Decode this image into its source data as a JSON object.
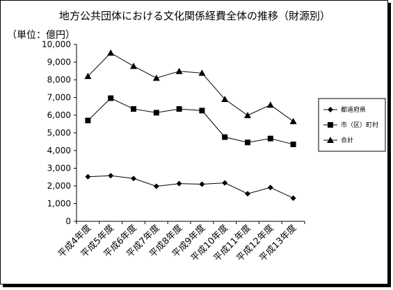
{
  "chart_data": {
    "type": "line",
    "title": "地方公共団体における文化関係経費全体の推移（財源別）",
    "ylabel": "（単位：億円）",
    "xlabel": "",
    "categories": [
      "平成4年度",
      "平成5年度",
      "平成6年度",
      "平成7年度",
      "平成8年度",
      "平成9年度",
      "平成10年度",
      "平成11年度",
      "平成12年度",
      "平成13年度"
    ],
    "ylim": [
      0,
      10000
    ],
    "yticks": [
      "0",
      "1,000",
      "2,000",
      "3,000",
      "4,000",
      "5,000",
      "6,000",
      "7,000",
      "8,000",
      "9,000",
      "10,000"
    ],
    "ytick_values": [
      0,
      1000,
      2000,
      3000,
      4000,
      5000,
      6000,
      7000,
      8000,
      9000,
      10000
    ],
    "grid": false,
    "legend_position": "right",
    "series": [
      {
        "name": "都道府県",
        "marker": "diamond",
        "values": [
          2520,
          2580,
          2420,
          1980,
          2130,
          2100,
          2170,
          1560,
          1910,
          1310
        ]
      },
      {
        "name": "市（区）町村",
        "marker": "square",
        "values": [
          5700,
          6960,
          6350,
          6140,
          6350,
          6260,
          4760,
          4460,
          4680,
          4350
        ]
      },
      {
        "name": "合計",
        "marker": "triangle",
        "values": [
          8200,
          9520,
          8770,
          8100,
          8480,
          8380,
          6900,
          5990,
          6580,
          5650
        ]
      }
    ]
  }
}
